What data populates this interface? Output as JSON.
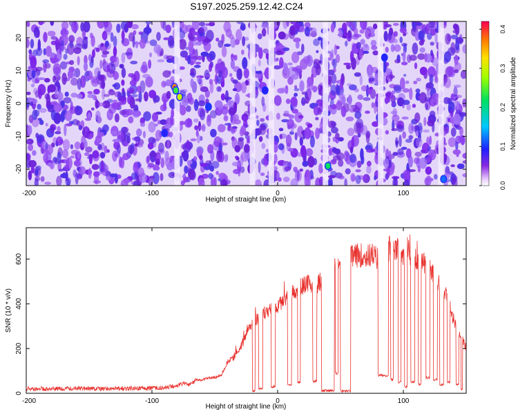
{
  "title": "S197.2025.259.12.42.C24",
  "spectrogram": {
    "xlabel": "Height of straight line (km)",
    "ylabel": "Frequency (Hz)",
    "xlim": [
      -200,
      150
    ],
    "ylim": [
      -25,
      25
    ],
    "xticks": [
      "-200",
      "-100",
      "0",
      "100"
    ],
    "xtick_values": [
      -200,
      -100,
      0,
      100
    ],
    "yticks": [
      "20",
      "10",
      "0",
      "-10",
      "-20"
    ],
    "ytick_values": [
      20,
      10,
      0,
      -10,
      -20
    ],
    "colorbar": {
      "label": "Normalized spectral amplitude",
      "range": [
        0,
        0.42
      ],
      "ticks": [
        "0.0",
        "0.1",
        "0.2",
        "0.3",
        "0.4"
      ],
      "tick_values": [
        0.0,
        0.1,
        0.2,
        0.3,
        0.4
      ]
    },
    "colors": {
      "low": "#ffffff",
      "mid": "#7a22e8",
      "high": "#ff0050"
    }
  },
  "chart_data": [
    {
      "type": "heatmap",
      "title": "S197.2025.259.12.42.C24",
      "xlabel": "Height of straight line (km)",
      "ylabel": "Frequency (Hz)",
      "xlim": [
        -200,
        150
      ],
      "ylim": [
        -25,
        25
      ],
      "value_label": "Normalized spectral amplitude",
      "value_range": [
        0,
        0.42
      ],
      "dominant_value_range": [
        0.0,
        0.06
      ],
      "hotspots": [
        {
          "x": -82,
          "y": 5,
          "value": 0.36
        },
        {
          "x": -78,
          "y": 2,
          "value": 0.3
        },
        {
          "x": -81,
          "y": 4,
          "value": 0.24
        },
        {
          "x": 40,
          "y": -19,
          "value": 0.22
        },
        {
          "x": 132,
          "y": -23,
          "value": 0.12
        },
        {
          "x": -55,
          "y": -1,
          "value": 0.1
        },
        {
          "x": -90,
          "y": -9,
          "value": 0.09
        },
        {
          "x": -10,
          "y": 4,
          "value": 0.09
        },
        {
          "x": 85,
          "y": 14,
          "value": 0.09
        }
      ],
      "low_amplitude_columns_x": [
        -80,
        -20,
        -5,
        38,
        82,
        130
      ]
    },
    {
      "type": "line",
      "xlabel": "Height of straight line (km)",
      "ylabel": "SNR (10 * v/v)",
      "xlim": [
        -200,
        150
      ],
      "ylim": [
        0,
        740
      ],
      "xticks": [
        "-200",
        "-100",
        "0",
        "100"
      ],
      "xtick_values": [
        -200,
        -100,
        0,
        100
      ],
      "yticks": [
        "0",
        "200",
        "400",
        "600"
      ],
      "ytick_values": [
        0,
        200,
        400,
        600
      ],
      "color": "#e8302c",
      "series": [
        {
          "x": [
            -200,
            -180,
            -160,
            -140,
            -120,
            -100,
            -90,
            -80,
            -75,
            -70,
            -65,
            -60,
            -55,
            -50,
            -45,
            -40,
            -35,
            -30,
            -25,
            -20,
            -15,
            -10,
            -5,
            0,
            5,
            10,
            15,
            20,
            25,
            30,
            35,
            40,
            45,
            50,
            55,
            60,
            65,
            70,
            75,
            80,
            85,
            90,
            95,
            100,
            105,
            110,
            115,
            120,
            125,
            130,
            135,
            140,
            145,
            150
          ],
          "y": [
            20,
            20,
            22,
            20,
            22,
            22,
            25,
            35,
            45,
            40,
            60,
            60,
            70,
            70,
            80,
            140,
            160,
            200,
            260,
            320,
            340,
            360,
            380,
            390,
            420,
            440,
            460,
            480,
            490,
            470,
            510,
            530,
            560,
            590,
            600,
            610,
            620,
            610,
            620,
            600,
            620,
            660,
            640,
            630,
            620,
            600,
            580,
            560,
            520,
            480,
            420,
            330,
            270,
            200
          ]
        }
      ],
      "dropouts": [
        {
          "x": [
            -20,
            -18
          ],
          "y": 10
        },
        {
          "x": [
            -15,
            -12
          ],
          "y": 20
        },
        {
          "x": [
            -5,
            -2
          ],
          "y": 30
        },
        {
          "x": [
            8,
            11
          ],
          "y": 40
        },
        {
          "x": [
            16,
            18
          ],
          "y": 50
        },
        {
          "x": [
            28,
            31
          ],
          "y": 55
        },
        {
          "x": [
            35,
            45
          ],
          "y": 12
        },
        {
          "x": [
            46,
            48
          ],
          "y": 90
        },
        {
          "x": [
            50,
            58
          ],
          "y": 10
        },
        {
          "x": [
            80,
            88
          ],
          "y": 80
        },
        {
          "x": [
            90,
            92
          ],
          "y": 60
        },
        {
          "x": [
            96,
            98
          ],
          "y": 50
        },
        {
          "x": [
            101,
            103
          ],
          "y": 30
        },
        {
          "x": [
            106,
            109
          ],
          "y": 50
        },
        {
          "x": [
            112,
            114
          ],
          "y": 40
        },
        {
          "x": [
            118,
            121
          ],
          "y": 70
        },
        {
          "x": [
            124,
            127
          ],
          "y": 60
        },
        {
          "x": [
            129,
            132
          ],
          "y": 40
        },
        {
          "x": [
            135,
            137
          ],
          "y": 50
        },
        {
          "x": [
            142,
            144
          ],
          "y": 40
        },
        {
          "x": [
            146,
            147
          ],
          "y": 20
        }
      ]
    }
  ],
  "snr": {
    "xlabel": "Height of straight line (km)",
    "ylabel": "SNR (10 * v/v)",
    "yticks": [
      "600",
      "400",
      "200",
      "0"
    ],
    "ytick_values": [
      600,
      400,
      200,
      0
    ],
    "xticks": [
      "-200",
      "-100",
      "0",
      "100"
    ],
    "xtick_values": [
      -200,
      -100,
      0,
      100
    ]
  }
}
